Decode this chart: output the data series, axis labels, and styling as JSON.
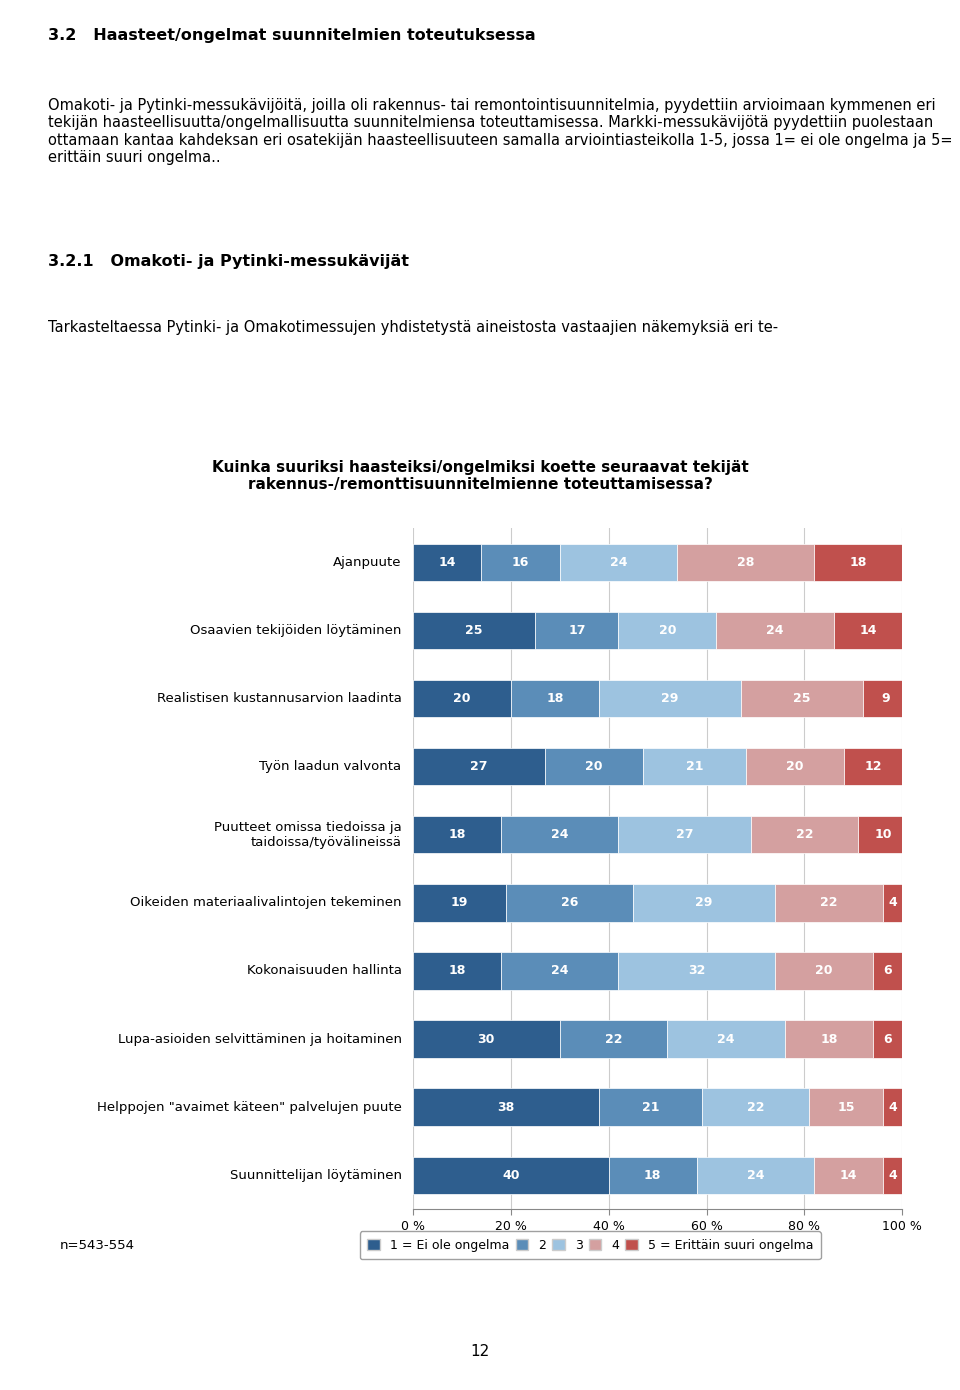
{
  "title_line1": "Kuinka suuriksi haasteiksi/ongelmiksi koette seuraavat tekijät",
  "title_line2": "rakennus-/remonttisuunnitelmienne toteuttamisessa?",
  "categories": [
    "Ajanpuute",
    "Osaavien tekijöiden löytäminen",
    "Realistisen kustannusarvion laadinta",
    "Työn laadun valvonta",
    "Puutteet omissa tiedoissa ja\ntaidoissa/työvälineissä",
    "Oikeiden materiaalivalintojen tekeminen",
    "Kokonaisuuden hallinta",
    "Lupa-asioiden selvittäminen ja hoitaminen",
    "Helppojen \"avaimet käteen\" palvelujen puute",
    "Suunnittelijan löytäminen"
  ],
  "data": [
    [
      14,
      16,
      24,
      28,
      18
    ],
    [
      25,
      17,
      20,
      24,
      14
    ],
    [
      20,
      18,
      29,
      25,
      9
    ],
    [
      27,
      20,
      21,
      20,
      12
    ],
    [
      18,
      24,
      27,
      22,
      10
    ],
    [
      19,
      26,
      29,
      22,
      4
    ],
    [
      18,
      24,
      32,
      20,
      6
    ],
    [
      30,
      22,
      24,
      18,
      6
    ],
    [
      38,
      21,
      22,
      15,
      4
    ],
    [
      40,
      18,
      24,
      14,
      4
    ]
  ],
  "colors": [
    "#2E5E8E",
    "#5B8DB8",
    "#9DC3E0",
    "#D4A0A0",
    "#C0504D"
  ],
  "legend_labels": [
    "1 = Ei ole ongelma",
    "2",
    "3",
    "4",
    "5 = Erittäin suuri ongelma"
  ],
  "n_label": "n=543-554",
  "background_color": "#ffffff",
  "bar_height": 0.55,
  "text_header1": "3.2   Haasteet/ongelmat suunnitelmien toteutuksessa",
  "text_header2": "3.2.1   Omakoti- ja Pytinki-messukävijät",
  "page_number": "12"
}
